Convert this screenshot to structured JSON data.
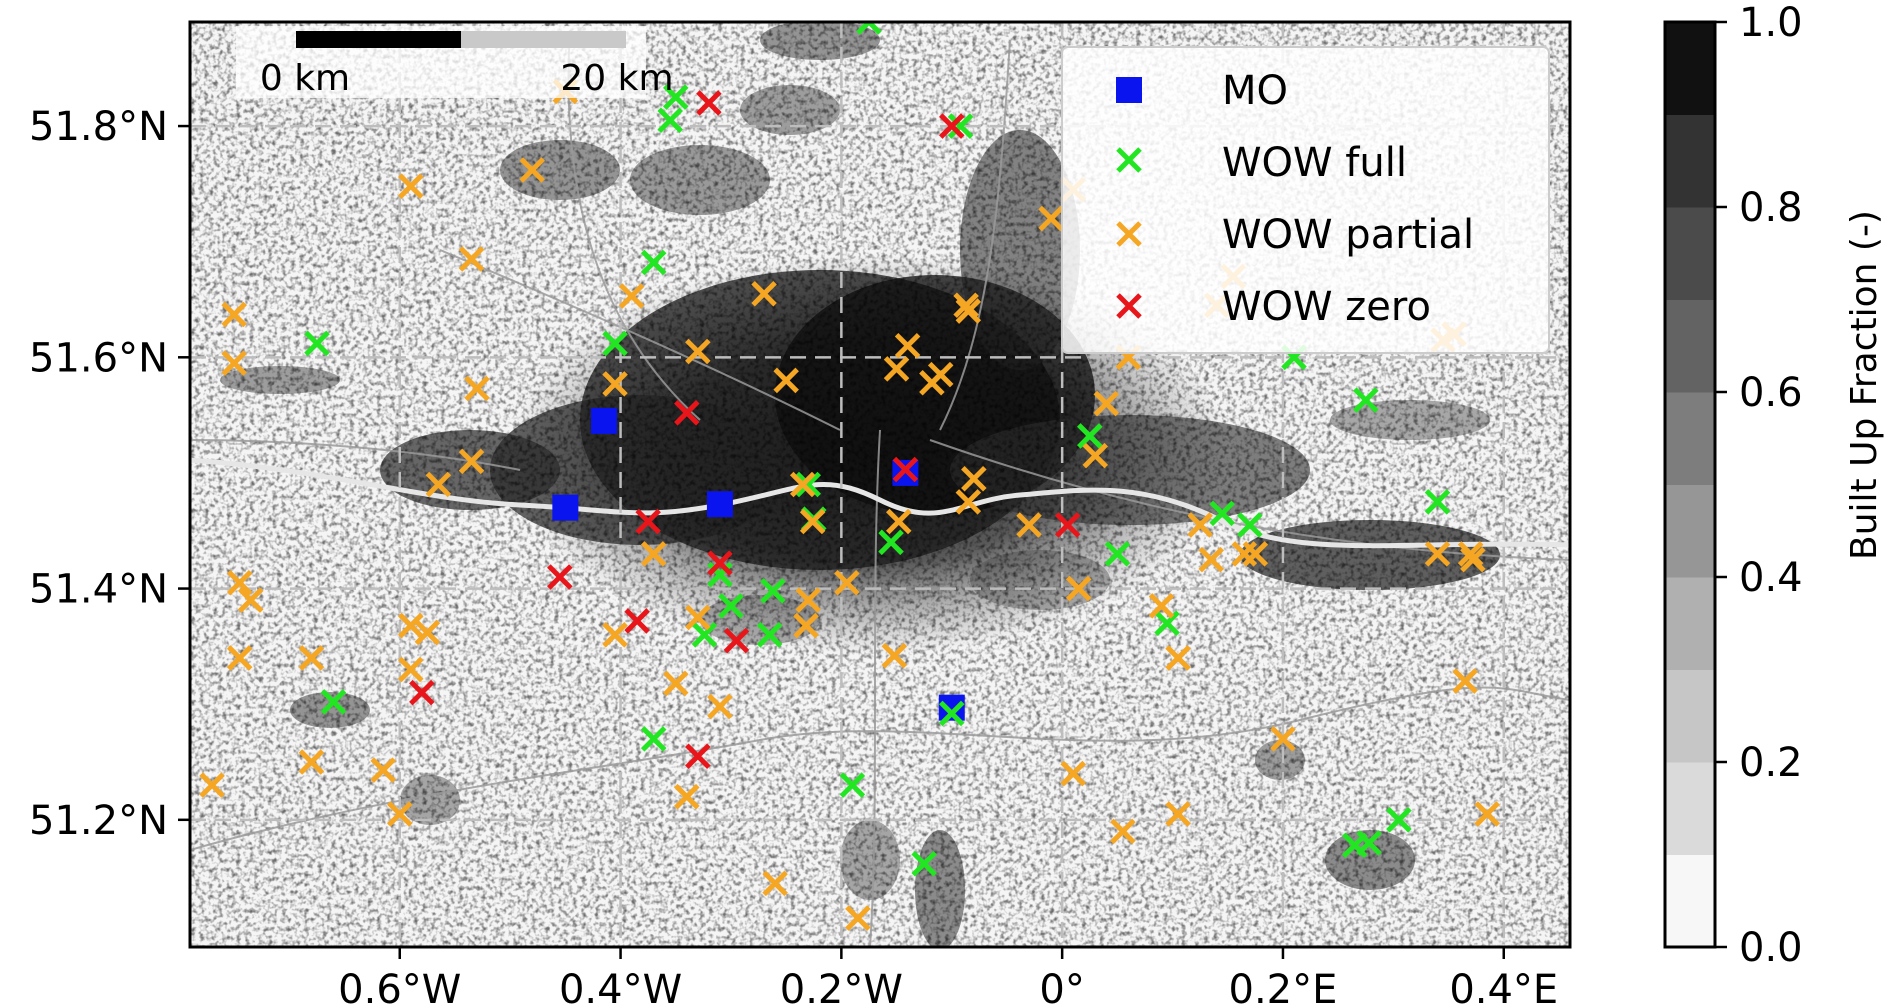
{
  "map": {
    "x_ticks": [
      "0.6°W",
      "0.4°W",
      "0.2°W",
      "0°",
      "0.2°E",
      "0.4°E"
    ],
    "y_ticks": [
      "51.8°N",
      "51.6°N",
      "51.4°N",
      "51.2°N"
    ],
    "scale_bar": {
      "start_label": "0 km",
      "end_label": "20 km"
    },
    "legend": [
      {
        "label": "MO",
        "marker": "square",
        "color": "#0a14ee"
      },
      {
        "label": "WOW full",
        "marker": "x",
        "color": "#22e622"
      },
      {
        "label": "WOW partial",
        "marker": "x",
        "color": "#f5a623"
      },
      {
        "label": "WOW zero",
        "marker": "x",
        "color": "#e8161b"
      }
    ],
    "colorbar": {
      "label": "Built Up Fraction (-)",
      "ticks": [
        "0.0",
        "0.2",
        "0.4",
        "0.6",
        "0.8",
        "1.0"
      ]
    }
  },
  "chart_data": {
    "type": "scatter",
    "x_range": [
      -0.79,
      0.46
    ],
    "y_range": [
      51.09,
      51.89
    ],
    "grid": true,
    "legend_placement": "top-right",
    "colorbar": {
      "range": [
        0.0,
        1.0
      ],
      "levels": 10,
      "colors": [
        "#f7f7f7",
        "#dadada",
        "#c6c6c6",
        "#b0b0b0",
        "#969696",
        "#7d7d7d",
        "#636363",
        "#4b4b4b",
        "#333333",
        "#111111"
      ]
    },
    "series": [
      {
        "name": "MO",
        "marker": "square",
        "color": "#0a14ee",
        "points": [
          [
            -0.415,
            51.545
          ],
          [
            -0.45,
            51.47
          ],
          [
            -0.31,
            51.473
          ],
          [
            -0.142,
            51.5
          ],
          [
            -0.1,
            51.297
          ]
        ]
      },
      {
        "name": "WOW full",
        "marker": "x",
        "color": "#22e622",
        "points": [
          [
            -0.175,
            51.89
          ],
          [
            -0.355,
            51.805
          ],
          [
            -0.35,
            51.825
          ],
          [
            -0.092,
            51.8
          ],
          [
            -0.405,
            51.612
          ],
          [
            -0.37,
            51.682
          ],
          [
            -0.675,
            51.612
          ],
          [
            -0.66,
            51.302
          ],
          [
            -0.37,
            51.27
          ],
          [
            -0.31,
            51.412
          ],
          [
            -0.3,
            51.385
          ],
          [
            -0.324,
            51.36
          ],
          [
            -0.262,
            51.398
          ],
          [
            -0.265,
            51.36
          ],
          [
            -0.23,
            51.49
          ],
          [
            -0.225,
            51.46
          ],
          [
            -0.19,
            51.23
          ],
          [
            -0.155,
            51.44
          ],
          [
            -0.125,
            51.162
          ],
          [
            -0.1,
            51.292
          ],
          [
            0.025,
            51.532
          ],
          [
            0.05,
            51.43
          ],
          [
            0.095,
            51.37
          ],
          [
            0.145,
            51.465
          ],
          [
            0.17,
            51.455
          ],
          [
            0.21,
            51.6
          ],
          [
            0.275,
            51.563
          ],
          [
            0.34,
            51.475
          ],
          [
            0.265,
            51.178
          ],
          [
            0.278,
            51.18
          ],
          [
            0.305,
            51.2
          ]
        ]
      },
      {
        "name": "WOW partial",
        "marker": "x",
        "color": "#f5a623",
        "points": [
          [
            -0.45,
            51.83
          ],
          [
            -0.48,
            51.762
          ],
          [
            -0.59,
            51.748
          ],
          [
            -0.535,
            51.685
          ],
          [
            -0.75,
            51.637
          ],
          [
            -0.75,
            51.595
          ],
          [
            -0.53,
            51.573
          ],
          [
            -0.405,
            51.577
          ],
          [
            -0.39,
            51.653
          ],
          [
            -0.33,
            51.605
          ],
          [
            -0.27,
            51.655
          ],
          [
            -0.25,
            51.58
          ],
          [
            -0.235,
            51.49
          ],
          [
            -0.226,
            51.458
          ],
          [
            -0.37,
            51.43
          ],
          [
            -0.405,
            51.36
          ],
          [
            -0.535,
            51.51
          ],
          [
            -0.565,
            51.49
          ],
          [
            -0.745,
            51.405
          ],
          [
            -0.735,
            51.39
          ],
          [
            -0.745,
            51.34
          ],
          [
            -0.68,
            51.34
          ],
          [
            -0.59,
            51.368
          ],
          [
            -0.575,
            51.362
          ],
          [
            -0.59,
            51.33
          ],
          [
            -0.68,
            51.25
          ],
          [
            -0.615,
            51.243
          ],
          [
            -0.6,
            51.205
          ],
          [
            -0.77,
            51.23
          ],
          [
            -0.35,
            51.318
          ],
          [
            -0.33,
            51.375
          ],
          [
            -0.34,
            51.22
          ],
          [
            -0.31,
            51.298
          ],
          [
            -0.23,
            51.39
          ],
          [
            -0.232,
            51.368
          ],
          [
            -0.195,
            51.405
          ],
          [
            -0.26,
            51.145
          ],
          [
            -0.185,
            51.115
          ],
          [
            -0.148,
            51.458
          ],
          [
            -0.152,
            51.342
          ],
          [
            -0.15,
            51.59
          ],
          [
            -0.14,
            51.61
          ],
          [
            -0.11,
            51.585
          ],
          [
            -0.118,
            51.578
          ],
          [
            -0.085,
            51.64
          ],
          [
            -0.087,
            51.645
          ],
          [
            -0.08,
            51.495
          ],
          [
            -0.085,
            51.475
          ],
          [
            -0.03,
            51.455
          ],
          [
            0.015,
            51.4
          ],
          [
            -0.01,
            51.72
          ],
          [
            0.01,
            51.24
          ],
          [
            0.03,
            51.515
          ],
          [
            0.04,
            51.56
          ],
          [
            0.06,
            51.6
          ],
          [
            0.09,
            51.385
          ],
          [
            0.105,
            51.34
          ],
          [
            0.105,
            51.205
          ],
          [
            0.055,
            51.19
          ],
          [
            0.125,
            51.455
          ],
          [
            0.135,
            51.425
          ],
          [
            0.165,
            51.43
          ],
          [
            0.175,
            51.43
          ],
          [
            0.14,
            51.645
          ],
          [
            0.155,
            51.67
          ],
          [
            0.34,
            51.43
          ],
          [
            0.37,
            51.43
          ],
          [
            0.372,
            51.425
          ],
          [
            0.365,
            51.32
          ],
          [
            0.385,
            51.205
          ],
          [
            0.2,
            51.27
          ],
          [
            0.01,
            51.745
          ],
          [
            0.345,
            51.615
          ],
          [
            0.355,
            51.62
          ]
        ]
      },
      {
        "name": "WOW zero",
        "marker": "x",
        "color": "#e8161b",
        "points": [
          [
            -0.32,
            51.82
          ],
          [
            -0.1,
            51.8
          ],
          [
            -0.34,
            51.552
          ],
          [
            -0.375,
            51.458
          ],
          [
            -0.455,
            51.41
          ],
          [
            -0.385,
            51.372
          ],
          [
            -0.31,
            51.422
          ],
          [
            -0.295,
            51.355
          ],
          [
            -0.33,
            51.255
          ],
          [
            -0.58,
            51.31
          ],
          [
            -0.142,
            51.503
          ],
          [
            0.005,
            51.455
          ]
        ]
      }
    ]
  }
}
